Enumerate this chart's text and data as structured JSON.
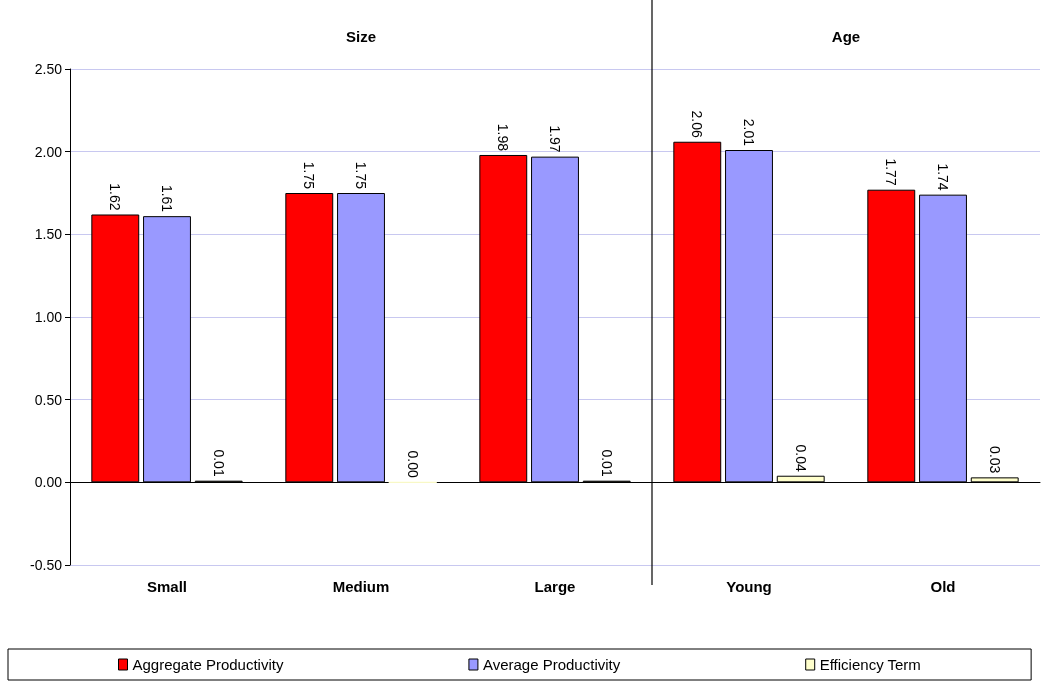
{
  "chart_data": {
    "type": "bar",
    "categories": [
      "Small",
      "Medium",
      "Large",
      "Young",
      "Old"
    ],
    "series": [
      {
        "name": "Aggregate Productivity",
        "color": "#ff0000",
        "values": [
          1.62,
          1.75,
          1.98,
          2.06,
          1.77
        ],
        "value_labels": [
          "1.62",
          "1.75",
          "1.98",
          "2.06",
          "1.77"
        ]
      },
      {
        "name": "Average Productivity",
        "color": "#9999ff",
        "values": [
          1.61,
          1.75,
          1.97,
          2.01,
          1.74
        ],
        "value_labels": [
          "1.61",
          "1.75",
          "1.97",
          "2.01",
          "1.74"
        ]
      },
      {
        "name": "Efficiency Term",
        "color": "#ffffcc",
        "values": [
          0.01,
          0.0,
          0.01,
          0.04,
          0.03
        ],
        "value_labels": [
          "0.01",
          "0.00",
          "0.01",
          "0.04",
          "0.03"
        ]
      }
    ],
    "ylim": [
      -0.5,
      2.5
    ],
    "yticks": [
      {
        "value": -0.5,
        "label": "-0.50"
      },
      {
        "value": 0,
        "label": "0.00"
      },
      {
        "value": 0.5,
        "label": "0.50"
      },
      {
        "value": 1,
        "label": "1.00"
      },
      {
        "value": 1.5,
        "label": "1.50"
      },
      {
        "value": 2,
        "label": "2.00"
      },
      {
        "value": 2.5,
        "label": "2.50"
      }
    ],
    "grid": "y",
    "legend": "bottom",
    "annotations": [
      "Size",
      "Age"
    ]
  }
}
